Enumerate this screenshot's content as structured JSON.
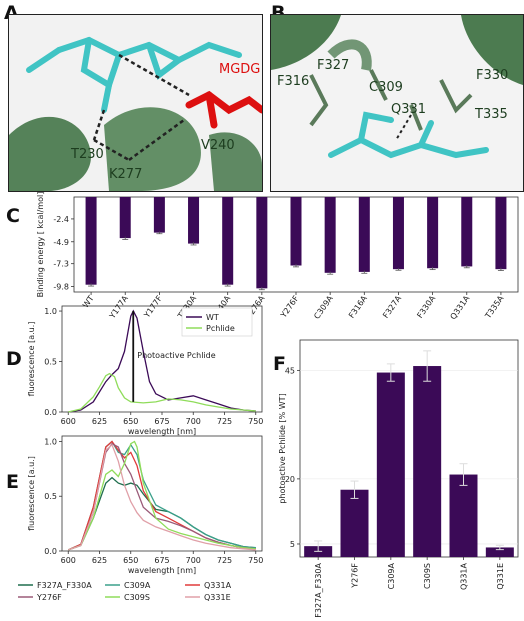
{
  "panels": {
    "A": {
      "letter": "A",
      "labels": [
        "MGDG",
        "V240",
        "T230",
        "K277"
      ]
    },
    "B": {
      "letter": "B",
      "labels": [
        "F327",
        "F316",
        "C309",
        "F330",
        "Q331",
        "T335"
      ]
    },
    "C": {
      "letter": "C"
    },
    "D": {
      "letter": "D"
    },
    "E": {
      "letter": "E"
    },
    "F": {
      "letter": "F"
    }
  },
  "colors": {
    "bar": "#3b0a57",
    "wt": "#3b0a57",
    "pchlide": "#8fdc5a",
    "protein": "#3a6e3e",
    "ligand": "#40c4c4",
    "mgdg": "#dd1010"
  },
  "chart_data": [
    {
      "panel": "C",
      "type": "bar",
      "ylabel": "Binding energy [ kcal/mol]",
      "yticks": [
        "-2.4",
        "-4.9",
        "-7.3",
        "-9.8"
      ],
      "ylim": [
        -10.4,
        0
      ],
      "categories": [
        "WT",
        "Y177A",
        "Y177F",
        "T230A",
        "V240A",
        "Y276A",
        "Y276F",
        "C309A",
        "F316A",
        "F327A",
        "F330A",
        "Q331A",
        "T335A"
      ],
      "values": [
        -9.6,
        -4.5,
        -3.9,
        -5.1,
        -9.6,
        -10.0,
        -7.5,
        -8.3,
        -8.2,
        -7.9,
        -7.8,
        -7.6,
        -7.9
      ],
      "errors": [
        0.15,
        0.15,
        0.12,
        0.15,
        0.15,
        0.15,
        0.15,
        0.15,
        0.15,
        0.12,
        0.15,
        0.15,
        0.15
      ]
    },
    {
      "panel": "D",
      "type": "line",
      "xlabel": "wavelength [nm]",
      "ylabel": "fluorescence [a.u.]",
      "xlim": [
        595,
        755
      ],
      "ylim": [
        0,
        1.05
      ],
      "xticks": [
        600,
        625,
        650,
        675,
        700,
        725,
        750
      ],
      "yticks": [
        "0.0",
        "0.5",
        "1.0"
      ],
      "annotation": "Photoactive Pchlide",
      "annotation_x": 652,
      "annotation_range": [
        0.1,
        1.0
      ],
      "series": [
        {
          "name": "WT",
          "x": [
            600,
            610,
            620,
            630,
            635,
            640,
            645,
            650,
            652,
            655,
            660,
            665,
            670,
            680,
            690,
            700,
            710,
            720,
            730,
            740,
            750
          ],
          "y": [
            0.0,
            0.02,
            0.1,
            0.3,
            0.37,
            0.43,
            0.6,
            0.95,
            1.0,
            0.93,
            0.6,
            0.3,
            0.18,
            0.12,
            0.14,
            0.16,
            0.12,
            0.08,
            0.04,
            0.02,
            0.01
          ]
        },
        {
          "name": "Pchlide",
          "x": [
            600,
            610,
            620,
            625,
            630,
            633,
            637,
            640,
            645,
            650,
            660,
            670,
            680,
            690,
            700,
            710,
            720,
            730,
            740,
            750
          ],
          "y": [
            0.0,
            0.03,
            0.15,
            0.25,
            0.36,
            0.38,
            0.35,
            0.24,
            0.14,
            0.1,
            0.09,
            0.1,
            0.13,
            0.12,
            0.1,
            0.07,
            0.05,
            0.03,
            0.02,
            0.01
          ]
        }
      ]
    },
    {
      "panel": "E",
      "type": "line",
      "xlabel": "wavelength [nm]",
      "ylabel": "fluorescence [a.u.]",
      "xlim": [
        595,
        755
      ],
      "ylim": [
        0,
        1.05
      ],
      "xticks": [
        600,
        625,
        650,
        675,
        700,
        725,
        750
      ],
      "yticks": [
        "0.0",
        "0.5",
        "1.0"
      ],
      "series": [
        {
          "name": "F327A_F330A",
          "color": "#1f6e4e",
          "x": [
            600,
            610,
            620,
            630,
            635,
            640,
            645,
            650,
            655,
            660,
            670,
            680,
            690,
            700,
            710,
            720,
            730,
            740,
            750
          ],
          "y": [
            0.01,
            0.05,
            0.3,
            0.62,
            0.67,
            0.62,
            0.6,
            0.62,
            0.6,
            0.52,
            0.38,
            0.36,
            0.3,
            0.22,
            0.15,
            0.1,
            0.07,
            0.04,
            0.03
          ]
        },
        {
          "name": "C309A",
          "color": "#3aa08a",
          "x": [
            600,
            610,
            620,
            630,
            635,
            640,
            645,
            650,
            655,
            660,
            670,
            680,
            690,
            700,
            710,
            720,
            730,
            740,
            750
          ],
          "y": [
            0.01,
            0.06,
            0.4,
            0.95,
            1.0,
            0.9,
            0.88,
            0.97,
            0.88,
            0.65,
            0.42,
            0.36,
            0.3,
            0.22,
            0.15,
            0.1,
            0.07,
            0.04,
            0.03
          ]
        },
        {
          "name": "Q331A",
          "color": "#e03a3a",
          "x": [
            600,
            610,
            620,
            630,
            635,
            640,
            645,
            650,
            655,
            660,
            670,
            680,
            690,
            700,
            710,
            720,
            730,
            740,
            750
          ],
          "y": [
            0.01,
            0.06,
            0.4,
            0.95,
            1.0,
            0.92,
            0.85,
            0.9,
            0.78,
            0.55,
            0.36,
            0.3,
            0.24,
            0.18,
            0.12,
            0.08,
            0.05,
            0.03,
            0.02
          ]
        },
        {
          "name": "Y276F",
          "color": "#9a5a78",
          "x": [
            600,
            610,
            620,
            630,
            635,
            640,
            645,
            650,
            655,
            660,
            670,
            680,
            690,
            700,
            710,
            720,
            730,
            740,
            750
          ],
          "y": [
            0.01,
            0.05,
            0.35,
            0.9,
            0.98,
            0.95,
            0.8,
            0.7,
            0.55,
            0.4,
            0.3,
            0.27,
            0.23,
            0.18,
            0.12,
            0.08,
            0.05,
            0.03,
            0.02
          ]
        },
        {
          "name": "C309S",
          "color": "#8fdc5a",
          "x": [
            600,
            610,
            620,
            630,
            635,
            640,
            645,
            650,
            653,
            655,
            660,
            670,
            680,
            690,
            700,
            710,
            720,
            730,
            740,
            750
          ],
          "y": [
            0.01,
            0.05,
            0.3,
            0.7,
            0.74,
            0.68,
            0.8,
            0.98,
            1.0,
            0.95,
            0.62,
            0.3,
            0.2,
            0.16,
            0.13,
            0.1,
            0.07,
            0.05,
            0.03,
            0.02
          ]
        },
        {
          "name": "Q331E",
          "color": "#e0a0a8",
          "x": [
            600,
            610,
            620,
            630,
            635,
            640,
            645,
            650,
            655,
            660,
            670,
            680,
            690,
            700,
            710,
            720,
            730,
            740,
            750
          ],
          "y": [
            0.01,
            0.05,
            0.35,
            0.92,
            0.97,
            0.82,
            0.6,
            0.45,
            0.35,
            0.28,
            0.22,
            0.18,
            0.14,
            0.1,
            0.07,
            0.05,
            0.03,
            0.02,
            0.01
          ]
        }
      ]
    },
    {
      "panel": "F",
      "type": "bar",
      "ylabel": "photoactive Pchlide [% WT]",
      "ylim": [
        2,
        52
      ],
      "yticks": [
        5,
        20,
        45
      ],
      "categories": [
        "F327A_F330A",
        "Y276F",
        "C309A",
        "C309S",
        "Q331A",
        "Q331E"
      ],
      "values": [
        4.5,
        17.5,
        44.5,
        46,
        21,
        4.2
      ],
      "errors": [
        1.2,
        2.0,
        2.0,
        3.5,
        2.5,
        0.5
      ]
    }
  ]
}
